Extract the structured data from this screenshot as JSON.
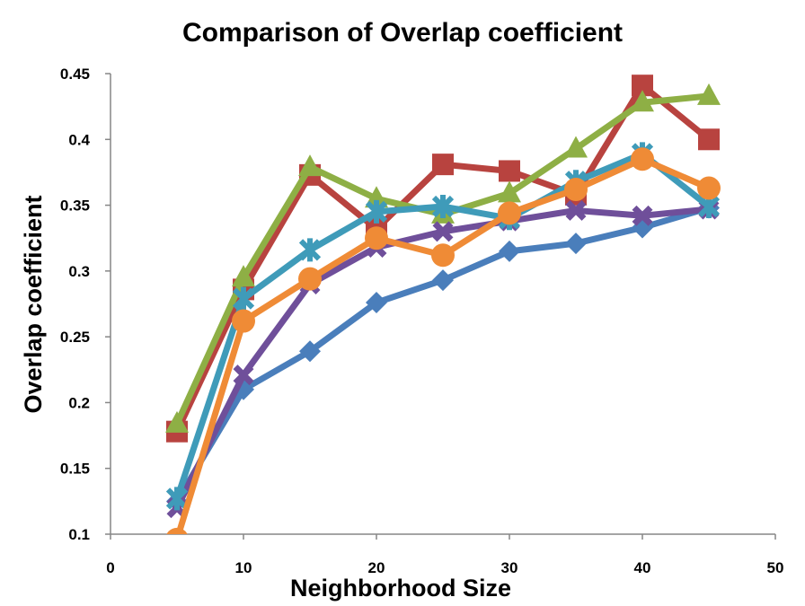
{
  "chart_data": {
    "type": "line",
    "title": "Comparison of Overlap coefficient",
    "xlabel": "Neighborhood Size",
    "ylabel": "Overlap coefficient",
    "xlim": [
      0,
      50
    ],
    "ylim": [
      0.1,
      0.45
    ],
    "xticks": [
      "0",
      "10",
      "20",
      "30",
      "40",
      "50"
    ],
    "yticks": [
      "0.1",
      "0.15",
      "0.2",
      "0.25",
      "0.3",
      "0.35",
      "0.4",
      "0.45"
    ],
    "grid": false,
    "legend": "none",
    "x": [
      5,
      10,
      15,
      20,
      25,
      30,
      35,
      40,
      45
    ],
    "series": [
      {
        "name": "series-blue",
        "marker": "diamond",
        "color": "#4A7EBB",
        "values": [
          0.125,
          0.21,
          0.239,
          0.276,
          0.293,
          0.315,
          0.321,
          0.333,
          0.348
        ]
      },
      {
        "name": "series-red",
        "marker": "square",
        "color": "#B8433F",
        "values": [
          0.178,
          0.286,
          0.373,
          0.332,
          0.381,
          0.376,
          0.358,
          0.441,
          0.4
        ]
      },
      {
        "name": "series-green",
        "marker": "triangle",
        "color": "#8EAF45",
        "values": [
          0.184,
          0.295,
          0.379,
          0.355,
          0.343,
          0.359,
          0.393,
          0.428,
          0.433
        ]
      },
      {
        "name": "series-purple",
        "marker": "x",
        "color": "#6F4F9A",
        "values": [
          0.12,
          0.221,
          0.29,
          0.318,
          0.33,
          0.338,
          0.346,
          0.342,
          0.347
        ]
      },
      {
        "name": "series-cyan",
        "marker": "star",
        "color": "#3F9BB9",
        "values": [
          0.127,
          0.279,
          0.316,
          0.345,
          0.349,
          0.34,
          0.368,
          0.389,
          0.349
        ]
      },
      {
        "name": "series-orange",
        "marker": "circle",
        "color": "#EF8B36",
        "values": [
          0.096,
          0.262,
          0.294,
          0.325,
          0.312,
          0.344,
          0.362,
          0.385,
          0.363
        ]
      }
    ]
  }
}
